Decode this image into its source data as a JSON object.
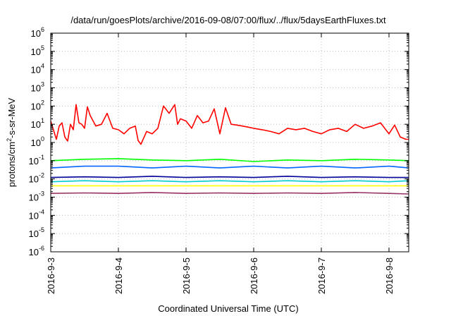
{
  "chart_data": {
    "type": "line",
    "title": "/data/run/goesPlots/archive/2016-09-08/07:00/flux/../flux/5daysEarthFluxes.txt",
    "xlabel": "Coordinated Universal Time (UTC)",
    "ylabel": "protons/cm²-s-sr-MeV",
    "ylabel_parts": {
      "before": "protons/cm",
      "sup": "2",
      "after": "-s-sr-MeV"
    },
    "y_scale": "log",
    "ylim": [
      1e-06,
      1000000
    ],
    "y_ticks": [
      {
        "value": 1e-06,
        "base": "10",
        "exp": "-6"
      },
      {
        "value": 1e-05,
        "base": "10",
        "exp": "-5"
      },
      {
        "value": 0.0001,
        "base": "10",
        "exp": "-4"
      },
      {
        "value": 0.001,
        "base": "10",
        "exp": "-3"
      },
      {
        "value": 0.01,
        "base": "10",
        "exp": "-2"
      },
      {
        "value": 0.1,
        "base": "10",
        "exp": "-1"
      },
      {
        "value": 1,
        "base": "10",
        "exp": "0"
      },
      {
        "value": 10,
        "base": "10",
        "exp": "1"
      },
      {
        "value": 100,
        "base": "10",
        "exp": "2"
      },
      {
        "value": 1000,
        "base": "10",
        "exp": "3"
      },
      {
        "value": 10000,
        "base": "10",
        "exp": "4"
      },
      {
        "value": 100000,
        "base": "10",
        "exp": "5"
      },
      {
        "value": 1000000,
        "base": "10",
        "exp": "6"
      }
    ],
    "x_ticks": [
      "2016-9-3",
      "2016-9-4",
      "2016-9-5",
      "2016-9-6",
      "2016-9-7",
      "2016-9-8"
    ],
    "xlim": [
      "2016-09-03T00:00",
      "2016-09-08T07:00"
    ],
    "grid": true,
    "legend": "none",
    "series": [
      {
        "color": "#ff0000",
        "x": [
          "2016-09-03T00:00",
          "2016-09-03T02:00",
          "2016-09-03T03:00",
          "2016-09-03T04:00",
          "2016-09-03T05:00",
          "2016-09-03T06:00",
          "2016-09-03T07:00",
          "2016-09-03T08:00",
          "2016-09-03T09:00",
          "2016-09-03T10:00",
          "2016-09-03T11:00",
          "2016-09-03T12:00",
          "2016-09-03T13:00",
          "2016-09-03T14:00",
          "2016-09-03T16:00",
          "2016-09-03T18:00",
          "2016-09-03T20:00",
          "2016-09-03T22:00",
          "2016-09-04T00:00",
          "2016-09-04T02:00",
          "2016-09-04T04:00",
          "2016-09-04T06:00",
          "2016-09-04T07:00",
          "2016-09-04T08:00",
          "2016-09-04T10:00",
          "2016-09-04T12:00",
          "2016-09-04T14:00",
          "2016-09-04T16:00",
          "2016-09-04T18:00",
          "2016-09-04T20:00",
          "2016-09-04T21:00",
          "2016-09-04T22:00",
          "2016-09-05T00:00",
          "2016-09-05T02:00",
          "2016-09-05T04:00",
          "2016-09-05T06:00",
          "2016-09-05T08:00",
          "2016-09-05T10:00",
          "2016-09-05T12:00",
          "2016-09-05T14:00",
          "2016-09-05T16:00",
          "2016-09-05T18:00",
          "2016-09-05T20:00",
          "2016-09-05T22:00",
          "2016-09-06T00:00",
          "2016-09-06T03:00",
          "2016-09-06T06:00",
          "2016-09-06T09:00",
          "2016-09-06T12:00",
          "2016-09-06T15:00",
          "2016-09-06T18:00",
          "2016-09-06T21:00",
          "2016-09-07T00:00",
          "2016-09-07T03:00",
          "2016-09-07T06:00",
          "2016-09-07T09:00",
          "2016-09-07T12:00",
          "2016-09-07T15:00",
          "2016-09-07T18:00",
          "2016-09-07T21:00",
          "2016-09-08T00:00",
          "2016-09-08T02:00",
          "2016-09-08T04:00",
          "2016-09-08T06:00",
          "2016-09-08T07:00"
        ],
        "values": [
          15,
          1.5,
          8,
          12,
          2,
          1.2,
          10,
          5,
          120,
          12,
          10,
          6,
          90,
          30,
          8,
          10,
          40,
          6,
          5,
          3,
          6,
          8,
          1.3,
          0.8,
          4,
          3,
          6,
          100,
          40,
          120,
          10,
          20,
          15,
          6,
          30,
          12,
          15,
          70,
          3,
          80,
          10,
          9,
          8,
          7,
          6,
          5,
          4,
          3,
          6,
          5,
          6,
          4,
          3,
          5,
          6,
          4,
          10,
          6,
          8,
          12,
          3,
          9,
          2,
          1.5,
          1.5
        ]
      },
      {
        "color": "#00ff00",
        "x": [
          "2016-09-03T00:00",
          "2016-09-03T12:00",
          "2016-09-04T00:00",
          "2016-09-04T12:00",
          "2016-09-05T00:00",
          "2016-09-05T12:00",
          "2016-09-06T00:00",
          "2016-09-06T12:00",
          "2016-09-07T00:00",
          "2016-09-07T12:00",
          "2016-09-08T00:00",
          "2016-09-08T07:00"
        ],
        "values": [
          0.1,
          0.12,
          0.13,
          0.11,
          0.1,
          0.12,
          0.09,
          0.11,
          0.1,
          0.12,
          0.11,
          0.1
        ]
      },
      {
        "color": "#0066ff",
        "x": [
          "2016-09-03T00:00",
          "2016-09-03T12:00",
          "2016-09-04T00:00",
          "2016-09-04T12:00",
          "2016-09-05T00:00",
          "2016-09-05T12:00",
          "2016-09-06T00:00",
          "2016-09-06T12:00",
          "2016-09-07T00:00",
          "2016-09-07T12:00",
          "2016-09-08T00:00",
          "2016-09-08T07:00"
        ],
        "values": [
          0.04,
          0.05,
          0.05,
          0.04,
          0.05,
          0.04,
          0.05,
          0.04,
          0.05,
          0.04,
          0.05,
          0.04
        ]
      },
      {
        "color": "#00cccc",
        "x": [
          "2016-09-03T00:00",
          "2016-09-03T12:00",
          "2016-09-04T00:00",
          "2016-09-04T12:00",
          "2016-09-05T00:00",
          "2016-09-05T12:00",
          "2016-09-06T00:00",
          "2016-09-06T12:00",
          "2016-09-07T00:00",
          "2016-09-07T12:00",
          "2016-09-08T00:00",
          "2016-09-08T07:00"
        ],
        "values": [
          0.007,
          0.008,
          0.007,
          0.008,
          0.007,
          0.008,
          0.007,
          0.008,
          0.007,
          0.008,
          0.007,
          0.008
        ]
      },
      {
        "color": "#000099",
        "x": [
          "2016-09-03T00:00",
          "2016-09-03T12:00",
          "2016-09-04T00:00",
          "2016-09-04T12:00",
          "2016-09-05T00:00",
          "2016-09-05T12:00",
          "2016-09-06T00:00",
          "2016-09-06T12:00",
          "2016-09-07T00:00",
          "2016-09-07T12:00",
          "2016-09-08T00:00",
          "2016-09-08T07:00"
        ],
        "values": [
          0.012,
          0.013,
          0.012,
          0.014,
          0.012,
          0.013,
          0.012,
          0.014,
          0.012,
          0.013,
          0.012,
          0.012
        ]
      },
      {
        "color": "#ffff00",
        "x": [
          "2016-09-03T00:00",
          "2016-09-03T12:00",
          "2016-09-04T00:00",
          "2016-09-04T12:00",
          "2016-09-05T00:00",
          "2016-09-05T12:00",
          "2016-09-06T00:00",
          "2016-09-06T12:00",
          "2016-09-07T00:00",
          "2016-09-07T12:00",
          "2016-09-08T00:00",
          "2016-09-08T07:00"
        ],
        "values": [
          0.0042,
          0.0042,
          0.0042,
          0.0042,
          0.0042,
          0.0042,
          0.0042,
          0.0042,
          0.0042,
          0.0042,
          0.0042,
          0.0042
        ]
      },
      {
        "color": "#993366",
        "x": [
          "2016-09-03T00:00",
          "2016-09-03T12:00",
          "2016-09-04T00:00",
          "2016-09-04T12:00",
          "2016-09-05T00:00",
          "2016-09-05T12:00",
          "2016-09-06T00:00",
          "2016-09-06T12:00",
          "2016-09-07T00:00",
          "2016-09-07T12:00",
          "2016-09-08T00:00",
          "2016-09-08T07:00"
        ],
        "values": [
          0.0016,
          0.0017,
          0.0016,
          0.0018,
          0.0016,
          0.0017,
          0.0016,
          0.0017,
          0.0016,
          0.0018,
          0.0016,
          0.0015
        ]
      }
    ]
  }
}
